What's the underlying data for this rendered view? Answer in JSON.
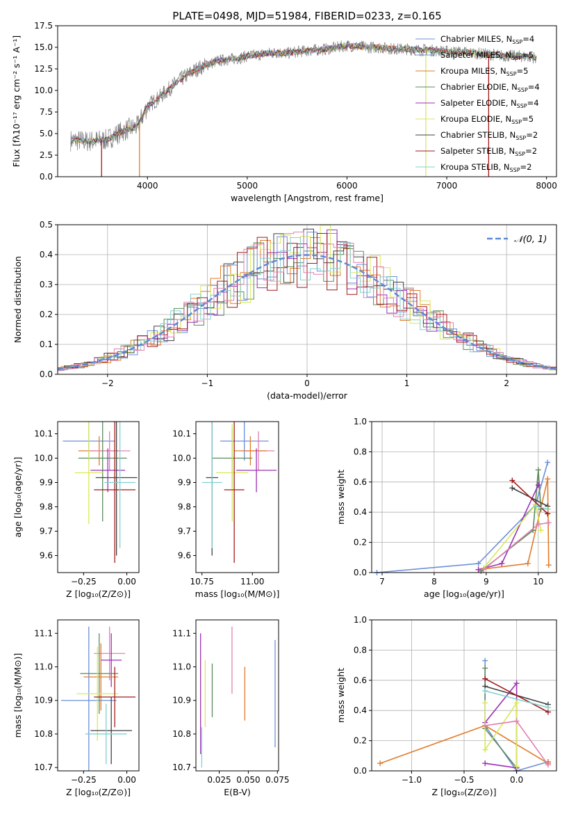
{
  "figure_title": "PLATE=0498, MJD=51984, FIBERID=0233, z=0.165",
  "colors": {
    "Chabrier MILES": "#6a8fd8",
    "Salpeter MILES": "#6a8fd8",
    "Kroupa MILES": "#e07b2a",
    "Chabrier ELODIE": "#5c8a5c",
    "Salpeter ELODIE": "#9b2fb4",
    "Kroupa ELODIE": "#d8e858",
    "Chabrier STELIB": "#404040",
    "Salpeter STELIB": "#a01818",
    "Kroupa STELIB": "#80d0d0",
    "Pink": "#e080b0",
    "Observed": "#808080"
  },
  "chart_data": [
    {
      "type": "line",
      "title": "PLATE=0498, MJD=51984, FIBERID=0233, z=0.165",
      "xlabel": "wavelength [Angstrom, rest frame]",
      "ylabel": "Flux [fλ10⁻¹⁷ erg cm⁻² s⁻¹ A⁻¹]",
      "xlim": [
        3100,
        8100
      ],
      "ylim": [
        0,
        17.5
      ],
      "xticks": [
        4000,
        5000,
        6000,
        7000,
        8000
      ],
      "yticks": [
        0.0,
        2.5,
        5.0,
        7.5,
        10.0,
        12.5,
        15.0,
        17.5
      ],
      "legend_position": "right",
      "legend": [
        {
          "label": "Chabrier MILES, N",
          "sub": "SSP",
          "suffix": "=4",
          "color": "#6a8fd8"
        },
        {
          "label": "Salpeter MILES, N",
          "sub": "SSP",
          "suffix": "=5",
          "color": "#6a8fd8"
        },
        {
          "label": "Kroupa MILES, N",
          "sub": "SSP",
          "suffix": "=5",
          "color": "#e07b2a"
        },
        {
          "label": "Chabrier ELODIE, N",
          "sub": "SSP",
          "suffix": "=4",
          "color": "#5c8a5c"
        },
        {
          "label": "Salpeter ELODIE, N",
          "sub": "SSP",
          "suffix": "=4",
          "color": "#9b2fb4"
        },
        {
          "label": "Kroupa ELODIE, N",
          "sub": "SSP",
          "suffix": "=5",
          "color": "#d8e858"
        },
        {
          "label": "Chabrier STELIB, N",
          "sub": "SSP",
          "suffix": "=2",
          "color": "#404040"
        },
        {
          "label": "Salpeter STELIB, N",
          "sub": "SSP",
          "suffix": "=2",
          "color": "#a01818"
        },
        {
          "label": "Kroupa STELIB, N",
          "sub": "SSP",
          "suffix": "=2",
          "color": "#80d0d0"
        }
      ],
      "observed_x": [
        3230,
        3300,
        3400,
        3500,
        3600,
        3700,
        3800,
        3900,
        4000,
        4100,
        4200,
        4300,
        4400,
        4500,
        4600,
        4700,
        4800,
        4900,
        5000,
        5100,
        5200,
        5300,
        5400,
        5500,
        5600,
        5700,
        5800,
        5900,
        6000,
        6100,
        6200,
        6300,
        6400,
        6500,
        6600,
        6700,
        6800,
        6900,
        7000,
        7100,
        7200,
        7300,
        7400,
        7500,
        7600,
        7700,
        7800,
        7900
      ],
      "observed_y": [
        4.2,
        4.2,
        4.1,
        4.2,
        4.3,
        5.0,
        5.5,
        5.8,
        8.2,
        9.0,
        10.0,
        11.0,
        11.8,
        12.5,
        13.0,
        13.4,
        13.6,
        13.7,
        14.0,
        14.1,
        14.3,
        14.4,
        14.3,
        14.5,
        14.6,
        14.7,
        14.8,
        15.0,
        15.2,
        15.1,
        15.0,
        15.0,
        14.9,
        14.8,
        14.8,
        14.7,
        14.7,
        14.6,
        14.5,
        14.5,
        14.4,
        14.3,
        14.2,
        14.1,
        14.0,
        14.0,
        13.9,
        13.8
      ],
      "dips": [
        {
          "x": 3540,
          "series": "Salpeter STELIB"
        },
        {
          "x": 3920,
          "series": "Kroupa MILES"
        },
        {
          "x": 6790,
          "series": "Kroupa ELODIE"
        },
        {
          "x": 7420,
          "series": "Salpeter STELIB"
        }
      ]
    },
    {
      "type": "bar",
      "xlabel": "(data-model)/error",
      "ylabel": "Normed distribution",
      "xlim": [
        -2.5,
        2.5
      ],
      "ylim": [
        0,
        0.5
      ],
      "xticks": [
        -2,
        -1,
        0,
        1,
        2
      ],
      "yticks": [
        0.0,
        0.1,
        0.2,
        0.3,
        0.4,
        0.5
      ],
      "grid": true,
      "legend_position": "top-right",
      "legend_label": "𝒩(0, 1)",
      "gauss": {
        "mu": 0,
        "sigma": 1,
        "color": "#5b87d4"
      }
    },
    {
      "type": "scatter",
      "xlabel": "Z [log₁₀(Z/Z⊙)]",
      "ylabel": "age  [log₁₀(age/yr)]",
      "xlim": [
        -0.4,
        0.07
      ],
      "ylim": [
        9.53,
        10.15
      ],
      "xticks": [
        -0.25,
        0.0
      ],
      "yticks": [
        9.6,
        9.7,
        9.8,
        9.9,
        10.0,
        10.1
      ],
      "points": [
        {
          "color": "#6a8fd8",
          "x": -0.22,
          "xerr": 0.15,
          "y": 10.07,
          "yerr": 0.08
        },
        {
          "color": "#e07b2a",
          "x": -0.16,
          "xerr": 0.12,
          "y": 10.03,
          "yerr": 0.06
        },
        {
          "color": "#e080b0",
          "x": -0.1,
          "xerr": 0.12,
          "y": 10.03,
          "yerr": 0.08
        },
        {
          "color": "#5c8a5c",
          "x": -0.14,
          "xerr": 0.14,
          "y": 10.0,
          "yerr": 0.26
        },
        {
          "color": "#9b2fb4",
          "x": -0.11,
          "xerr": 0.1,
          "y": 9.95,
          "yerr": 0.09
        },
        {
          "color": "#d8e858",
          "x": -0.22,
          "xerr": 0.08,
          "y": 9.94,
          "yerr": 0.21
        },
        {
          "color": "#404040",
          "x": -0.06,
          "xerr": 0.12,
          "y": 9.92,
          "yerr": 0.32
        },
        {
          "color": "#a01818",
          "x": -0.07,
          "xerr": 0.12,
          "y": 9.87,
          "yerr": 0.3
        },
        {
          "color": "#80d0d0",
          "x": -0.04,
          "xerr": 0.09,
          "y": 9.9,
          "yerr": 0.27
        }
      ]
    },
    {
      "type": "scatter",
      "xlabel": "mass [log₁₀(M/M⊙)]",
      "ylabel": "",
      "xlim": [
        10.72,
        11.13
      ],
      "ylim": [
        9.53,
        10.15
      ],
      "xticks": [
        10.75,
        11.0
      ],
      "yticks": [
        9.6,
        9.7,
        9.8,
        9.9,
        10.0,
        10.1
      ],
      "points": [
        {
          "color": "#6a8fd8",
          "x": 10.96,
          "xerr": 0.12,
          "y": 10.07,
          "yerr": 0.08
        },
        {
          "color": "#e080b0",
          "x": 11.03,
          "xerr": 0.08,
          "y": 10.03,
          "yerr": 0.08
        },
        {
          "color": "#e07b2a",
          "x": 10.99,
          "xerr": 0.08,
          "y": 10.03,
          "yerr": 0.06
        },
        {
          "color": "#5c8a5c",
          "x": 10.9,
          "xerr": 0.1,
          "y": 10.0,
          "yerr": 0.12
        },
        {
          "color": "#9b2fb4",
          "x": 11.02,
          "xerr": 0.1,
          "y": 9.95,
          "yerr": 0.09
        },
        {
          "color": "#d8e858",
          "x": 10.9,
          "xerr": 0.08,
          "y": 9.94,
          "yerr": 0.2
        },
        {
          "color": "#404040",
          "x": 10.8,
          "xerr": 0.03,
          "y": 9.92,
          "yerr": 0.32
        },
        {
          "color": "#a01818",
          "x": 10.91,
          "xerr": 0.05,
          "y": 9.87,
          "yerr": 0.3
        },
        {
          "color": "#80d0d0",
          "x": 10.8,
          "xerr": 0.05,
          "y": 9.9,
          "yerr": 0.27
        }
      ]
    },
    {
      "type": "line",
      "xlabel": "age  [log₁₀(age/yr)]",
      "ylabel": "mass weight",
      "xlim": [
        6.8,
        10.35
      ],
      "ylim": [
        0,
        1.0
      ],
      "xticks": [
        7,
        8,
        9,
        10
      ],
      "yticks": [
        0.0,
        0.2,
        0.4,
        0.6,
        0.8,
        1.0
      ],
      "grid": true,
      "series": [
        {
          "color": "#6a8fd8",
          "x": [
            6.9,
            8.85,
            9.95,
            10.18
          ],
          "y": [
            0.0,
            0.06,
            0.45,
            0.73
          ]
        },
        {
          "color": "#e07b2a",
          "x": [
            8.85,
            9.8,
            10.18,
            10.2
          ],
          "y": [
            0.02,
            0.06,
            0.62,
            0.05
          ]
        },
        {
          "color": "#5c8a5c",
          "x": [
            8.9,
            9.9,
            10.0,
            10.05
          ],
          "y": [
            0.01,
            0.28,
            0.68,
            0.42
          ]
        },
        {
          "color": "#9b2fb4",
          "x": [
            8.85,
            9.3,
            10.0
          ],
          "y": [
            0.02,
            0.06,
            0.58
          ]
        },
        {
          "color": "#d8e858",
          "x": [
            8.95,
            9.95,
            10.05
          ],
          "y": [
            0.03,
            0.45,
            0.28
          ]
        },
        {
          "color": "#404040",
          "x": [
            9.5,
            10.18
          ],
          "y": [
            0.56,
            0.44
          ]
        },
        {
          "color": "#a01818",
          "x": [
            9.5,
            10.18
          ],
          "y": [
            0.61,
            0.39
          ]
        },
        {
          "color": "#80d0d0",
          "x": [
            9.95,
            10.18
          ],
          "y": [
            0.44,
            0.42
          ]
        },
        {
          "color": "#e080b0",
          "x": [
            8.95,
            10.0,
            10.2
          ],
          "y": [
            0.02,
            0.32,
            0.33
          ]
        }
      ]
    },
    {
      "type": "scatter",
      "xlabel": "Z [log₁₀(Z/Z⊙)]",
      "ylabel": "mass [log₁₀(M/M⊙)]",
      "xlim": [
        -0.4,
        0.07
      ],
      "ylim": [
        10.69,
        11.14
      ],
      "xticks": [
        -0.25,
        0.0
      ],
      "yticks": [
        10.7,
        10.8,
        10.9,
        11.0,
        11.1
      ],
      "points": [
        {
          "color": "#6a8fd8",
          "x": -0.22,
          "xerr": 0.16,
          "y": 10.9,
          "yerr": 0.22
        },
        {
          "color": "#e080b0",
          "x": -0.1,
          "xerr": 0.09,
          "y": 11.04,
          "yerr": 0.08
        },
        {
          "color": "#9b2fb4",
          "x": -0.09,
          "xerr": 0.06,
          "y": 11.02,
          "yerr": 0.08
        },
        {
          "color": "#5c8a5c",
          "x": -0.16,
          "xerr": 0.11,
          "y": 10.98,
          "yerr": 0.12
        },
        {
          "color": "#e07b2a",
          "x": -0.15,
          "xerr": 0.1,
          "y": 10.97,
          "yerr": 0.1
        },
        {
          "color": "#d8e858",
          "x": -0.17,
          "xerr": 0.12,
          "y": 10.92,
          "yerr": 0.14
        },
        {
          "color": "#a01818",
          "x": -0.07,
          "xerr": 0.12,
          "y": 10.91,
          "yerr": 0.09
        },
        {
          "color": "#404040",
          "x": -0.09,
          "xerr": 0.12,
          "y": 10.81,
          "yerr": 0.1
        },
        {
          "color": "#80d0d0",
          "x": -0.12,
          "xerr": 0.12,
          "y": 10.8,
          "yerr": 0.09
        }
      ]
    },
    {
      "type": "scatter",
      "xlabel": "E(B-V)",
      "ylabel": "",
      "xlim": [
        0.005,
        0.076
      ],
      "ylim": [
        10.69,
        11.14
      ],
      "xticks": [
        0.025,
        0.05,
        0.075
      ],
      "yticks": [
        10.7,
        10.8,
        10.9,
        11.0,
        11.1
      ],
      "points": [
        {
          "color": "#9b2fb4",
          "x": 0.009,
          "xerr": 0,
          "y": 10.92,
          "yerr": 0.18
        },
        {
          "color": "#80d0d0",
          "x": 0.01,
          "xerr": 0,
          "y": 10.76,
          "yerr": 0.06
        },
        {
          "color": "#d8e858",
          "x": 0.013,
          "xerr": 0,
          "y": 10.92,
          "yerr": 0.1
        },
        {
          "color": "#5c8a5c",
          "x": 0.019,
          "xerr": 0,
          "y": 10.93,
          "yerr": 0.08
        },
        {
          "color": "#e080b0",
          "x": 0.036,
          "xerr": 0,
          "y": 11.02,
          "yerr": 0.1
        },
        {
          "color": "#e07b2a",
          "x": 0.047,
          "xerr": 0,
          "y": 10.92,
          "yerr": 0.08
        },
        {
          "color": "#6a8fd8",
          "x": 0.073,
          "xerr": 0,
          "y": 10.92,
          "yerr": 0.16
        }
      ]
    },
    {
      "type": "line",
      "xlabel": "Z [log₁₀(Z/Z⊙)]",
      "ylabel": "mass weight",
      "xlim": [
        -1.38,
        0.38
      ],
      "ylim": [
        0,
        1.0
      ],
      "xticks": [
        -1.0,
        -0.5,
        0.0
      ],
      "yticks": [
        0.0,
        0.2,
        0.4,
        0.6,
        0.8,
        1.0
      ],
      "grid": true,
      "series": [
        {
          "color": "#6a8fd8",
          "x": [
            -0.3,
            -0.3,
            0.0,
            0.3
          ],
          "y": [
            0.73,
            0.3,
            0.0,
            0.06
          ]
        },
        {
          "color": "#e07b2a",
          "x": [
            -1.3,
            -0.3,
            0.3,
            0.3
          ],
          "y": [
            0.05,
            0.3,
            0.05,
            0.06
          ]
        },
        {
          "color": "#5c8a5c",
          "x": [
            -0.3,
            -0.3,
            0.0
          ],
          "y": [
            0.68,
            0.28,
            0.02
          ]
        },
        {
          "color": "#9b2fb4",
          "x": [
            -0.3,
            0.0,
            0.0,
            -0.3
          ],
          "y": [
            0.32,
            0.58,
            0.02,
            0.05
          ]
        },
        {
          "color": "#d8e858",
          "x": [
            -0.3,
            -0.3,
            0.0,
            0.0
          ],
          "y": [
            0.45,
            0.14,
            0.45,
            0.03
          ]
        },
        {
          "color": "#404040",
          "x": [
            -0.3,
            0.3
          ],
          "y": [
            0.56,
            0.44
          ]
        },
        {
          "color": "#a01818",
          "x": [
            -0.3,
            0.3
          ],
          "y": [
            0.61,
            0.39
          ]
        },
        {
          "color": "#80d0d0",
          "x": [
            -0.3,
            0.3
          ],
          "y": [
            0.53,
            0.42
          ]
        },
        {
          "color": "#e080b0",
          "x": [
            -0.3,
            0.0,
            0.3
          ],
          "y": [
            0.3,
            0.33,
            0.04
          ]
        }
      ]
    }
  ]
}
